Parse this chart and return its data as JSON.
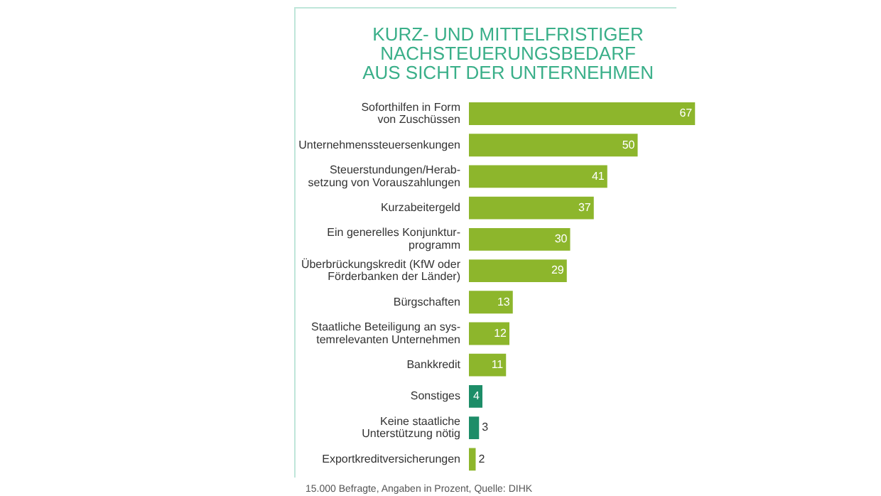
{
  "chart_data": {
    "type": "bar",
    "orientation": "horizontal",
    "title": "KURZ- UND MITTELFRISTIGER\nNACHSTEUERUNGSBEDARF\nAUS SICHT DER UNTERNEHMEN",
    "categories": [
      "Soforthilfen in Form\nvon Zuschüssen",
      "Unternehmenssteuersenkungen",
      "Steuerstundungen/Herab-\nsetzung von Vorauszahlungen",
      "Kurzabeitergeld",
      "Ein generelles Konjunktur-\nprogramm",
      "Überbrückungskredit (KfW oder\nFörderbanken der Länder)",
      "Bürgschaften",
      "Staatliche Beteiligung an sys-\ntemrelevanten Unternehmen",
      "Bankkredit",
      "Sonstiges",
      "Keine staatliche\nUnterstützung nötig",
      "Exportkreditversicherungen"
    ],
    "values": [
      67,
      50,
      41,
      37,
      30,
      29,
      13,
      12,
      11,
      4,
      3,
      2
    ],
    "colors": [
      "#8db62c",
      "#8db62c",
      "#8db62c",
      "#8db62c",
      "#8db62c",
      "#8db62c",
      "#8db62c",
      "#8db62c",
      "#8db62c",
      "#1d8d68",
      "#1d8d68",
      "#8db62c"
    ],
    "data_labels": true,
    "legend": false,
    "annotations": [
      "15.000 Befragte, Angaben in Prozent, Quelle: DIHK"
    ]
  }
}
